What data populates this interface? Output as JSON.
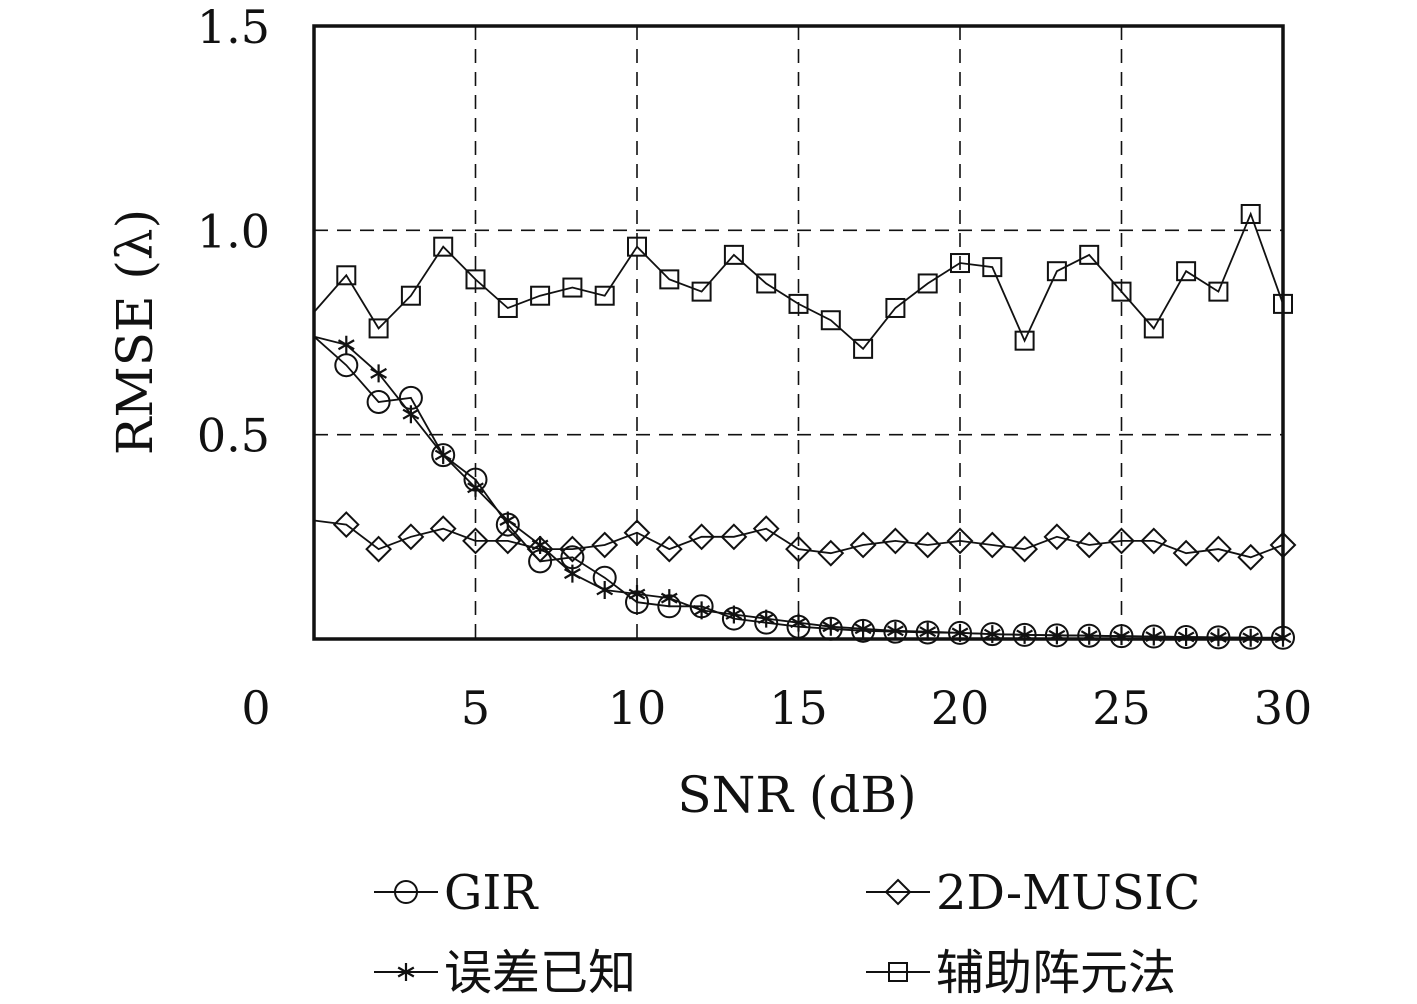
{
  "chart_data": {
    "type": "line",
    "xlabel": "SNR (dB)",
    "ylabel": "RMSE (λ)",
    "xlim": [
      0,
      30
    ],
    "ylim": [
      0,
      1.5
    ],
    "xticks": [
      0,
      5,
      10,
      15,
      20,
      25,
      30
    ],
    "xtick_labels": [
      "0",
      "5",
      "10",
      "15",
      "20",
      "25",
      "30"
    ],
    "yticks": [
      0.5,
      1.0,
      1.5
    ],
    "ytick_labels": [
      "0.5",
      "1.0",
      "1.5"
    ],
    "grid": true,
    "legend_position": "bottom",
    "colors": {
      "line": "#111111",
      "grid": "#111111",
      "background": "#ffffff"
    },
    "series": [
      {
        "name": "GIR",
        "marker": "circle",
        "x": [
          0,
          1,
          2,
          3,
          4,
          5,
          6,
          7,
          8,
          9,
          10,
          11,
          12,
          13,
          14,
          15,
          16,
          17,
          18,
          19,
          20,
          21,
          22,
          23,
          24,
          25,
          26,
          27,
          28,
          29,
          30
        ],
        "y": [
          0.74,
          0.67,
          0.58,
          0.59,
          0.45,
          0.39,
          0.28,
          0.19,
          0.2,
          0.15,
          0.09,
          0.08,
          0.08,
          0.05,
          0.04,
          0.03,
          0.025,
          0.02,
          0.018,
          0.016,
          0.015,
          0.012,
          0.01,
          0.009,
          0.008,
          0.007,
          0.006,
          0.005,
          0.004,
          0.003,
          0.003
        ]
      },
      {
        "name": "2D-MUSIC",
        "marker": "diamond",
        "x": [
          0,
          1,
          2,
          3,
          4,
          5,
          6,
          7,
          8,
          9,
          10,
          11,
          12,
          13,
          14,
          15,
          16,
          17,
          18,
          19,
          20,
          21,
          22,
          23,
          24,
          25,
          26,
          27,
          28,
          29,
          30
        ],
        "y": [
          0.29,
          0.28,
          0.22,
          0.25,
          0.27,
          0.24,
          0.24,
          0.22,
          0.22,
          0.23,
          0.26,
          0.22,
          0.25,
          0.25,
          0.27,
          0.22,
          0.21,
          0.23,
          0.24,
          0.23,
          0.24,
          0.23,
          0.22,
          0.25,
          0.23,
          0.24,
          0.24,
          0.21,
          0.22,
          0.2,
          0.23
        ]
      },
      {
        "name": "误差已知",
        "marker": "asterisk",
        "x": [
          0,
          1,
          2,
          3,
          4,
          5,
          6,
          7,
          8,
          9,
          10,
          11,
          12,
          13,
          14,
          15,
          16,
          17,
          18,
          19,
          20,
          21,
          22,
          23,
          24,
          25,
          26,
          27,
          28,
          29,
          30
        ],
        "y": [
          0.74,
          0.72,
          0.65,
          0.55,
          0.45,
          0.37,
          0.29,
          0.23,
          0.16,
          0.12,
          0.11,
          0.1,
          0.07,
          0.06,
          0.05,
          0.04,
          0.03,
          0.025,
          0.02,
          0.018,
          0.015,
          0.012,
          0.01,
          0.009,
          0.008,
          0.007,
          0.006,
          0.005,
          0.004,
          0.003,
          0.003
        ]
      },
      {
        "name": "辅助阵元法",
        "marker": "square",
        "x": [
          0,
          1,
          2,
          3,
          4,
          5,
          6,
          7,
          8,
          9,
          10,
          11,
          12,
          13,
          14,
          15,
          16,
          17,
          18,
          19,
          20,
          21,
          22,
          23,
          24,
          25,
          26,
          27,
          28,
          29,
          30
        ],
        "y": [
          0.8,
          0.89,
          0.76,
          0.84,
          0.96,
          0.88,
          0.81,
          0.84,
          0.86,
          0.84,
          0.96,
          0.88,
          0.85,
          0.94,
          0.87,
          0.82,
          0.78,
          0.71,
          0.81,
          0.87,
          0.92,
          0.91,
          0.73,
          0.9,
          0.94,
          0.85,
          0.76,
          0.9,
          0.85,
          1.04,
          0.82
        ]
      }
    ]
  }
}
